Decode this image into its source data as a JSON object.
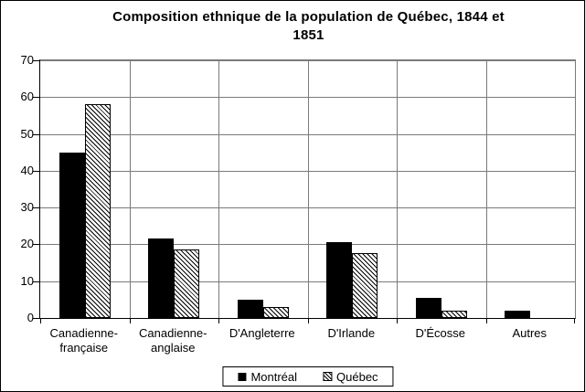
{
  "chart_data": {
    "type": "bar",
    "title": "Composition ethnique de la population de Québec, 1844 et 1851",
    "title_lines": [
      "Composition ethnique de la population de Québec, 1844 et",
      "1851"
    ],
    "categories": [
      "Canadienne-française",
      "Canadienne-anglaise",
      "D'Angleterre",
      "D'Irlande",
      "D'Écosse",
      "Autres"
    ],
    "category_label_lines": [
      [
        "Canadienne-",
        "française"
      ],
      [
        "Canadienne-",
        "anglaise"
      ],
      [
        "D'Angleterre"
      ],
      [
        "D'Irlande"
      ],
      [
        "D'Écosse"
      ],
      [
        "Autres"
      ]
    ],
    "series": [
      {
        "name": "Montréal",
        "fill": "solid",
        "values": [
          45,
          21.5,
          5,
          20.5,
          5.5,
          2
        ]
      },
      {
        "name": "Québec",
        "fill": "hatch",
        "values": [
          58,
          18.5,
          3,
          17.5,
          2,
          0
        ]
      }
    ],
    "ylim": [
      0,
      70
    ],
    "ytick_interval": 10,
    "yticks": [
      "0",
      "10",
      "20",
      "30",
      "40",
      "50",
      "60",
      "70"
    ],
    "grid": true,
    "legend_position": "bottom",
    "colors": {
      "bar": "#000000",
      "gridline": "#7a7a7a",
      "axis": "#000000",
      "background": "#ffffff",
      "border": "#000000"
    }
  }
}
